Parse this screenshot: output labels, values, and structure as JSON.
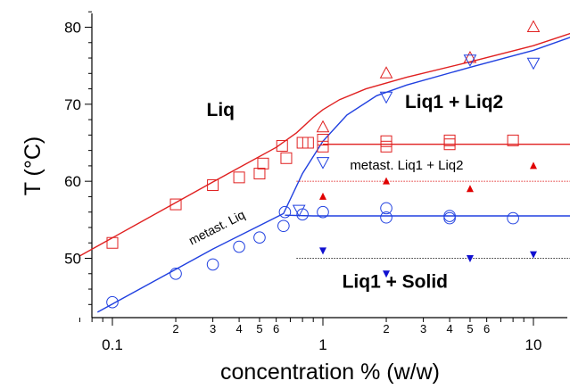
{
  "chart_data": {
    "type": "scatter",
    "title": "",
    "xlabel": "concentration % (w/w)",
    "ylabel": "T (°C)",
    "xscale": "log",
    "xlim": [
      0.07,
      15
    ],
    "ylim": [
      43,
      82
    ],
    "xticks_major": [
      0.1,
      1,
      10
    ],
    "xticks_major_labels": [
      "0.1",
      "1",
      "10"
    ],
    "xticks_minor_labeled": [
      2,
      3,
      4,
      5,
      6,
      20,
      30,
      40,
      50,
      60
    ],
    "xticks_minor_labels": [
      "2",
      "3",
      "4",
      "5",
      "6",
      "2",
      "3",
      "4",
      "5",
      "6"
    ],
    "yticks": [
      50,
      60,
      70,
      80
    ],
    "yticks_labels": [
      "50",
      "60",
      "70",
      "80"
    ],
    "grid": false,
    "region_labels": [
      {
        "text": "Liq",
        "x": 0.28,
        "y": 68.5
      },
      {
        "text": "Liq1 + Liq2",
        "x": 4.2,
        "y": 69.5
      },
      {
        "text": "metast. Liq1 + Liq2",
        "x": 2.5,
        "y": 61.5
      },
      {
        "text": "metast. Liq",
        "x": 0.32,
        "y": 53.5
      },
      {
        "text": "Liq1 + Solid",
        "x": 2.2,
        "y": 46.2
      }
    ],
    "series": [
      {
        "marker": "open-square",
        "color": "#e02020",
        "points": [
          [
            0.1,
            52
          ],
          [
            0.2,
            57
          ],
          [
            0.3,
            59.5
          ],
          [
            0.4,
            60.5
          ],
          [
            0.5,
            61
          ],
          [
            0.52,
            62.3
          ],
          [
            0.64,
            64.6
          ],
          [
            0.67,
            63
          ],
          [
            0.8,
            65
          ],
          [
            0.85,
            65
          ],
          [
            1,
            64.5
          ],
          [
            1,
            65.4
          ],
          [
            2,
            64.5
          ],
          [
            2,
            65.2
          ],
          [
            4,
            64.8
          ],
          [
            4,
            65.3
          ],
          [
            8,
            65.3
          ]
        ]
      },
      {
        "marker": "open-circle",
        "color": "#2040e0",
        "points": [
          [
            0.1,
            44.3
          ],
          [
            0.2,
            48
          ],
          [
            0.3,
            49.2
          ],
          [
            0.4,
            51.5
          ],
          [
            0.5,
            52.7
          ],
          [
            0.65,
            54.2
          ],
          [
            0.66,
            56
          ],
          [
            0.8,
            55.7
          ],
          [
            1,
            56
          ],
          [
            2,
            56.5
          ],
          [
            2,
            55.3
          ],
          [
            4,
            55.5
          ],
          [
            4,
            55.2
          ],
          [
            8,
            55.2
          ]
        ]
      },
      {
        "marker": "open-triangle-up",
        "color": "#e02020",
        "points": [
          [
            1,
            67
          ],
          [
            2,
            74
          ],
          [
            5,
            76
          ],
          [
            10,
            80
          ]
        ]
      },
      {
        "marker": "open-triangle-down",
        "color": "#2040e0",
        "points": [
          [
            0.77,
            56.3
          ],
          [
            1,
            62.5
          ],
          [
            2,
            71
          ],
          [
            5,
            75.8
          ],
          [
            10,
            75.4
          ]
        ]
      },
      {
        "marker": "filled-triangle-up",
        "color": "#e00000",
        "points": [
          [
            1,
            58
          ],
          [
            2,
            60
          ],
          [
            5,
            59
          ],
          [
            10,
            62
          ]
        ]
      },
      {
        "marker": "filled-triangle-down",
        "color": "#1010d0",
        "points": [
          [
            1,
            51
          ],
          [
            2,
            48
          ],
          [
            5,
            50
          ],
          [
            10,
            50.5
          ]
        ]
      }
    ],
    "lines": [
      {
        "style": "solid",
        "color": "#e02020",
        "points": [
          [
            0.07,
            50.3
          ],
          [
            0.3,
            59.9
          ],
          [
            0.6,
            64.4
          ],
          [
            0.75,
            66.3
          ],
          [
            0.9,
            68.3
          ],
          [
            1.0,
            69.3
          ],
          [
            1.2,
            70.6
          ],
          [
            1.6,
            72
          ],
          [
            2.5,
            73.5
          ],
          [
            5,
            75.5
          ],
          [
            10,
            77.6
          ],
          [
            15,
            79.2
          ]
        ]
      },
      {
        "style": "solid",
        "color": "#2040e0",
        "points": [
          [
            0.085,
            43
          ],
          [
            0.3,
            51.2
          ],
          [
            0.65,
            55.8
          ],
          [
            0.8,
            61
          ],
          [
            1.0,
            65.2
          ],
          [
            1.3,
            68.6
          ],
          [
            1.8,
            71.1
          ],
          [
            2.5,
            72.5
          ],
          [
            5,
            74.8
          ],
          [
            10,
            77
          ],
          [
            15,
            78.7
          ]
        ]
      },
      {
        "style": "solid",
        "color": "#e02020",
        "points": [
          [
            1,
            64.8
          ],
          [
            15,
            64.8
          ]
        ]
      },
      {
        "style": "solid",
        "color": "#2040e0",
        "points": [
          [
            0.66,
            55.6
          ],
          [
            0.9,
            55.5
          ],
          [
            15,
            55.5
          ]
        ]
      },
      {
        "style": "dotted",
        "color": "#e02020",
        "points": [
          [
            0.75,
            60
          ],
          [
            15,
            60
          ]
        ]
      },
      {
        "style": "dotted",
        "color": "#000000",
        "points": [
          [
            0.75,
            50
          ],
          [
            15,
            50
          ]
        ]
      }
    ]
  }
}
